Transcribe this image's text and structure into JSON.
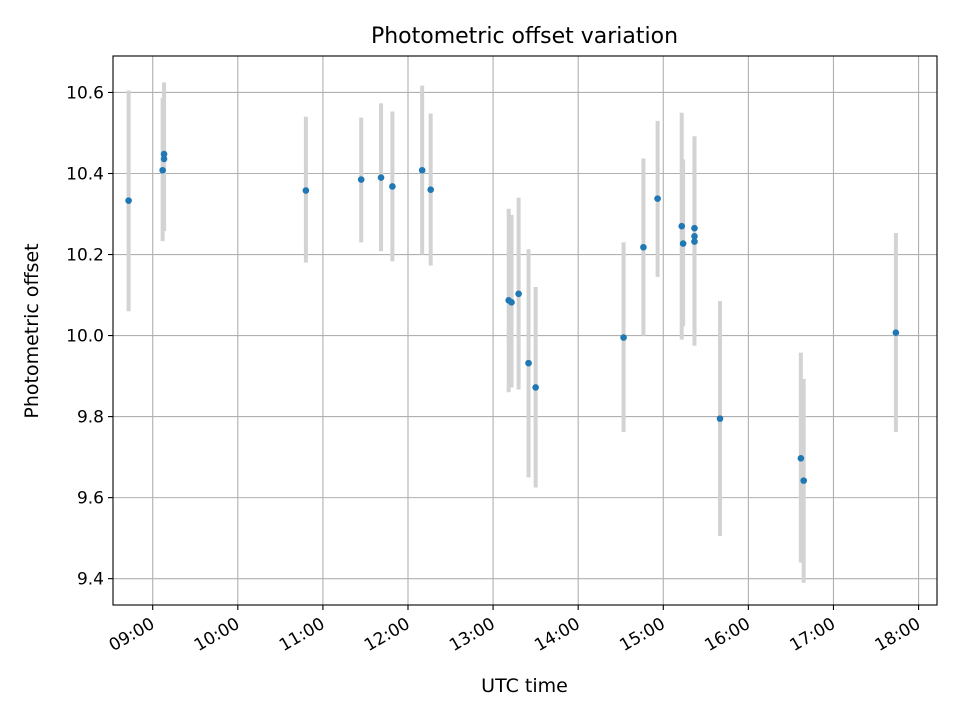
{
  "chart_data": {
    "type": "scatter",
    "title": "Photometric offset variation",
    "xlabel": "UTC time",
    "ylabel": "Photometric offset",
    "xlim": [
      "08:32",
      "18:13"
    ],
    "ylim": [
      9.335,
      10.69
    ],
    "x_ticks": [
      "09:00",
      "10:00",
      "11:00",
      "12:00",
      "13:00",
      "14:00",
      "15:00",
      "16:00",
      "17:00",
      "18:00"
    ],
    "y_ticks": [
      9.4,
      9.6,
      9.8,
      10.0,
      10.2,
      10.4,
      10.6
    ],
    "grid": true,
    "colors": {
      "points": "#1f77b4",
      "error_bars": "#d3d3d3",
      "grid": "#b0b0b0"
    },
    "series": [
      {
        "points": [
          {
            "x": "08:43",
            "y": 10.333,
            "yerr_low": 10.06,
            "yerr_high": 10.605
          },
          {
            "x": "09:07",
            "y": 10.408,
            "yerr_low": 10.233,
            "yerr_high": 10.587
          },
          {
            "x": "09:08",
            "y": 10.448,
            "yerr_low": 10.258,
            "yerr_high": 10.625
          },
          {
            "x": "09:08",
            "y": 10.436,
            "yerr_low": 10.262,
            "yerr_high": 10.6
          },
          {
            "x": "10:48",
            "y": 10.358,
            "yerr_low": 10.18,
            "yerr_high": 10.54
          },
          {
            "x": "11:27",
            "y": 10.385,
            "yerr_low": 10.23,
            "yerr_high": 10.538
          },
          {
            "x": "11:41",
            "y": 10.39,
            "yerr_low": 10.208,
            "yerr_high": 10.573
          },
          {
            "x": "11:49",
            "y": 10.368,
            "yerr_low": 10.183,
            "yerr_high": 10.553
          },
          {
            "x": "12:10",
            "y": 10.408,
            "yerr_low": 10.2,
            "yerr_high": 10.617
          },
          {
            "x": "12:16",
            "y": 10.36,
            "yerr_low": 10.173,
            "yerr_high": 10.548
          },
          {
            "x": "13:11",
            "y": 10.087,
            "yerr_low": 9.86,
            "yerr_high": 10.313
          },
          {
            "x": "13:13",
            "y": 10.082,
            "yerr_low": 9.872,
            "yerr_high": 10.298
          },
          {
            "x": "13:18",
            "y": 10.103,
            "yerr_low": 9.867,
            "yerr_high": 10.34
          },
          {
            "x": "13:25",
            "y": 9.932,
            "yerr_low": 9.65,
            "yerr_high": 10.213
          },
          {
            "x": "13:30",
            "y": 9.872,
            "yerr_low": 9.625,
            "yerr_high": 10.12
          },
          {
            "x": "14:32",
            "y": 9.995,
            "yerr_low": 9.762,
            "yerr_high": 10.23
          },
          {
            "x": "14:46",
            "y": 10.218,
            "yerr_low": 10.0,
            "yerr_high": 10.437
          },
          {
            "x": "14:56",
            "y": 10.338,
            "yerr_low": 10.145,
            "yerr_high": 10.53
          },
          {
            "x": "15:13",
            "y": 10.27,
            "yerr_low": 9.99,
            "yerr_high": 10.55
          },
          {
            "x": "15:14",
            "y": 10.227,
            "yerr_low": 10.023,
            "yerr_high": 10.435
          },
          {
            "x": "15:22",
            "y": 10.265,
            "yerr_low": 10.045,
            "yerr_high": 10.485
          },
          {
            "x": "15:22",
            "y": 10.245,
            "yerr_low": 9.975,
            "yerr_high": 10.492
          },
          {
            "x": "15:22",
            "y": 10.232,
            "yerr_low": 10.01,
            "yerr_high": 10.455
          },
          {
            "x": "15:40",
            "y": 9.795,
            "yerr_low": 9.505,
            "yerr_high": 10.085
          },
          {
            "x": "16:37",
            "y": 9.697,
            "yerr_low": 9.44,
            "yerr_high": 9.958
          },
          {
            "x": "16:39",
            "y": 9.642,
            "yerr_low": 9.39,
            "yerr_high": 9.893
          },
          {
            "x": "17:44",
            "y": 10.007,
            "yerr_low": 9.762,
            "yerr_high": 10.253
          }
        ]
      }
    ]
  }
}
